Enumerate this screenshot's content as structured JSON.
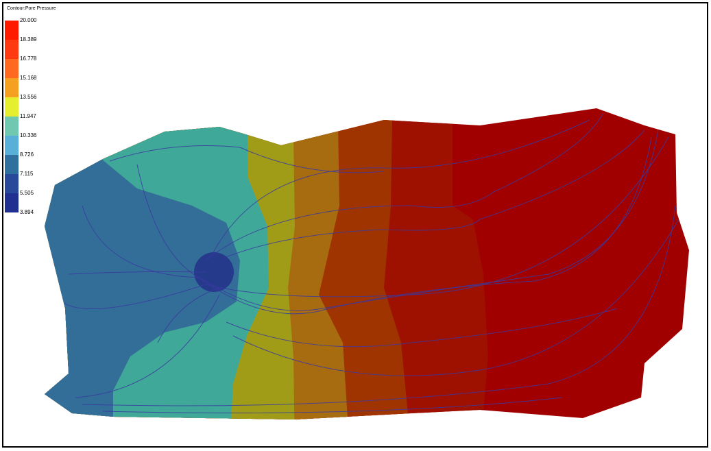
{
  "legend": {
    "title": "Contour:Pore Pressure",
    "labels": [
      "20.000",
      "18.389",
      "16.778",
      "15.168",
      "13.556",
      "11.947",
      "10.336",
      "8.726",
      "7.115",
      "5.505",
      "3.894"
    ],
    "colors": [
      "#ff1a00",
      "#ff3a10",
      "#ff6a20",
      "#f5a020",
      "#e6ee30",
      "#70c8b0",
      "#58b0d8",
      "#30709e",
      "#28489a",
      "#203090"
    ]
  }
}
